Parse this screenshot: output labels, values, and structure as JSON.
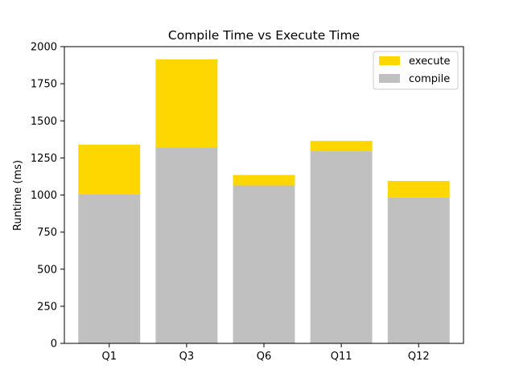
{
  "chart_data": {
    "type": "bar",
    "stacked": true,
    "title": "Compile Time vs Execute Time",
    "xlabel": "",
    "ylabel": "Runtime (ms)",
    "ylim": [
      0,
      2000
    ],
    "yticks": [
      0,
      250,
      500,
      750,
      1000,
      1250,
      1500,
      1750,
      2000
    ],
    "categories": [
      "Q1",
      "Q3",
      "Q6",
      "Q11",
      "Q12"
    ],
    "series": [
      {
        "name": "compile",
        "color": "#c0c0c0",
        "values": [
          1005,
          1320,
          1065,
          1295,
          985
        ]
      },
      {
        "name": "execute",
        "color": "#ffd700",
        "values": [
          335,
          595,
          70,
          70,
          110
        ]
      }
    ],
    "legend": {
      "placement": "top-right",
      "order": [
        "execute",
        "compile"
      ]
    },
    "grid": false
  }
}
